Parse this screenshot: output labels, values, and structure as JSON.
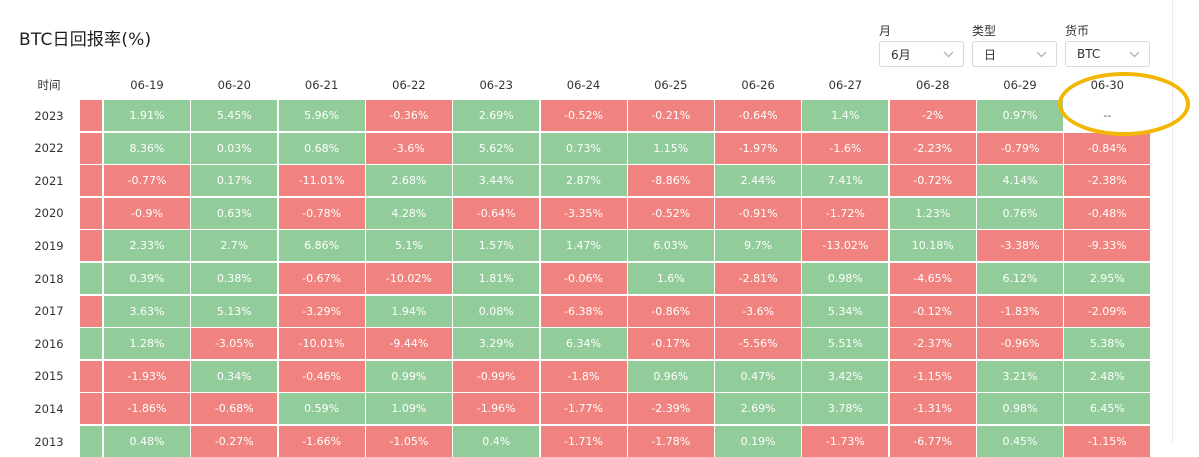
{
  "page": {
    "title": "BTC日回报率(%)"
  },
  "filters": [
    {
      "label": "月",
      "value": "6月"
    },
    {
      "label": "类型",
      "value": "日"
    },
    {
      "label": "货币",
      "value": "BTC"
    }
  ],
  "table": {
    "time_header": "时间",
    "columns": [
      "06-19",
      "06-20",
      "06-21",
      "06-22",
      "06-23",
      "06-24",
      "06-25",
      "06-26",
      "06-27",
      "06-28",
      "06-29",
      "06-30"
    ],
    "rows": [
      {
        "year": "2023",
        "stub": "neg",
        "cells": [
          {
            "text": "1.91%",
            "tone": "pos"
          },
          {
            "text": "5.45%",
            "tone": "pos"
          },
          {
            "text": "5.96%",
            "tone": "pos"
          },
          {
            "text": "-0.36%",
            "tone": "neg"
          },
          {
            "text": "2.69%",
            "tone": "pos"
          },
          {
            "text": "-0.52%",
            "tone": "neg"
          },
          {
            "text": "-0.21%",
            "tone": "neg"
          },
          {
            "text": "-0.64%",
            "tone": "neg"
          },
          {
            "text": "1.4%",
            "tone": "pos"
          },
          {
            "text": "-2%",
            "tone": "neg"
          },
          {
            "text": "0.97%",
            "tone": "pos"
          },
          {
            "text": "--",
            "tone": "empty"
          }
        ]
      },
      {
        "year": "2022",
        "stub": "neg",
        "cells": [
          {
            "text": "8.36%",
            "tone": "pos"
          },
          {
            "text": "0.03%",
            "tone": "pos"
          },
          {
            "text": "0.68%",
            "tone": "pos"
          },
          {
            "text": "-3.6%",
            "tone": "neg"
          },
          {
            "text": "5.62%",
            "tone": "pos"
          },
          {
            "text": "0.73%",
            "tone": "pos"
          },
          {
            "text": "1.15%",
            "tone": "pos"
          },
          {
            "text": "-1.97%",
            "tone": "neg"
          },
          {
            "text": "-1.6%",
            "tone": "neg"
          },
          {
            "text": "-2.23%",
            "tone": "neg"
          },
          {
            "text": "-0.79%",
            "tone": "neg"
          },
          {
            "text": "-0.84%",
            "tone": "neg"
          }
        ]
      },
      {
        "year": "2021",
        "stub": "neg",
        "cells": [
          {
            "text": "-0.77%",
            "tone": "neg"
          },
          {
            "text": "0.17%",
            "tone": "pos"
          },
          {
            "text": "-11.01%",
            "tone": "neg"
          },
          {
            "text": "2.68%",
            "tone": "pos"
          },
          {
            "text": "3.44%",
            "tone": "pos"
          },
          {
            "text": "2.87%",
            "tone": "pos"
          },
          {
            "text": "-8.86%",
            "tone": "neg"
          },
          {
            "text": "2.44%",
            "tone": "pos"
          },
          {
            "text": "7.41%",
            "tone": "pos"
          },
          {
            "text": "-0.72%",
            "tone": "neg"
          },
          {
            "text": "4.14%",
            "tone": "pos"
          },
          {
            "text": "-2.38%",
            "tone": "neg"
          }
        ]
      },
      {
        "year": "2020",
        "stub": "neg",
        "cells": [
          {
            "text": "-0.9%",
            "tone": "neg"
          },
          {
            "text": "0.63%",
            "tone": "pos"
          },
          {
            "text": "-0.78%",
            "tone": "neg"
          },
          {
            "text": "4.28%",
            "tone": "pos"
          },
          {
            "text": "-0.64%",
            "tone": "neg"
          },
          {
            "text": "-3.35%",
            "tone": "neg"
          },
          {
            "text": "-0.52%",
            "tone": "neg"
          },
          {
            "text": "-0.91%",
            "tone": "neg"
          },
          {
            "text": "-1.72%",
            "tone": "neg"
          },
          {
            "text": "1.23%",
            "tone": "pos"
          },
          {
            "text": "0.76%",
            "tone": "pos"
          },
          {
            "text": "-0.48%",
            "tone": "neg"
          }
        ]
      },
      {
        "year": "2019",
        "stub": "neg",
        "cells": [
          {
            "text": "2.33%",
            "tone": "pos"
          },
          {
            "text": "2.7%",
            "tone": "pos"
          },
          {
            "text": "6.86%",
            "tone": "pos"
          },
          {
            "text": "5.1%",
            "tone": "pos"
          },
          {
            "text": "1.57%",
            "tone": "pos"
          },
          {
            "text": "1.47%",
            "tone": "pos"
          },
          {
            "text": "6.03%",
            "tone": "pos"
          },
          {
            "text": "9.7%",
            "tone": "pos"
          },
          {
            "text": "-13.02%",
            "tone": "neg"
          },
          {
            "text": "10.18%",
            "tone": "pos"
          },
          {
            "text": "-3.38%",
            "tone": "neg"
          },
          {
            "text": "-9.33%",
            "tone": "neg"
          }
        ]
      },
      {
        "year": "2018",
        "stub": "pos",
        "cells": [
          {
            "text": "0.39%",
            "tone": "pos"
          },
          {
            "text": "0.38%",
            "tone": "pos"
          },
          {
            "text": "-0.67%",
            "tone": "neg"
          },
          {
            "text": "-10.02%",
            "tone": "neg"
          },
          {
            "text": "1.81%",
            "tone": "pos"
          },
          {
            "text": "-0.06%",
            "tone": "neg"
          },
          {
            "text": "1.6%",
            "tone": "pos"
          },
          {
            "text": "-2.81%",
            "tone": "neg"
          },
          {
            "text": "0.98%",
            "tone": "pos"
          },
          {
            "text": "-4.65%",
            "tone": "neg"
          },
          {
            "text": "6.12%",
            "tone": "pos"
          },
          {
            "text": "2.95%",
            "tone": "pos"
          }
        ]
      },
      {
        "year": "2017",
        "stub": "neg",
        "cells": [
          {
            "text": "3.63%",
            "tone": "pos"
          },
          {
            "text": "5.13%",
            "tone": "pos"
          },
          {
            "text": "-3.29%",
            "tone": "neg"
          },
          {
            "text": "1.94%",
            "tone": "pos"
          },
          {
            "text": "0.08%",
            "tone": "pos"
          },
          {
            "text": "-6.38%",
            "tone": "neg"
          },
          {
            "text": "-0.86%",
            "tone": "neg"
          },
          {
            "text": "-3.6%",
            "tone": "neg"
          },
          {
            "text": "5.34%",
            "tone": "pos"
          },
          {
            "text": "-0.12%",
            "tone": "neg"
          },
          {
            "text": "-1.83%",
            "tone": "neg"
          },
          {
            "text": "-2.09%",
            "tone": "neg"
          }
        ]
      },
      {
        "year": "2016",
        "stub": "pos",
        "cells": [
          {
            "text": "1.28%",
            "tone": "pos"
          },
          {
            "text": "-3.05%",
            "tone": "neg"
          },
          {
            "text": "-10.01%",
            "tone": "neg"
          },
          {
            "text": "-9.44%",
            "tone": "neg"
          },
          {
            "text": "3.29%",
            "tone": "pos"
          },
          {
            "text": "6.34%",
            "tone": "pos"
          },
          {
            "text": "-0.17%",
            "tone": "neg"
          },
          {
            "text": "-5.56%",
            "tone": "neg"
          },
          {
            "text": "5.51%",
            "tone": "pos"
          },
          {
            "text": "-2.37%",
            "tone": "neg"
          },
          {
            "text": "-0.96%",
            "tone": "neg"
          },
          {
            "text": "5.38%",
            "tone": "pos"
          }
        ]
      },
      {
        "year": "2015",
        "stub": "neg",
        "cells": [
          {
            "text": "-1.93%",
            "tone": "neg"
          },
          {
            "text": "0.34%",
            "tone": "pos"
          },
          {
            "text": "-0.46%",
            "tone": "neg"
          },
          {
            "text": "0.99%",
            "tone": "pos"
          },
          {
            "text": "-0.99%",
            "tone": "neg"
          },
          {
            "text": "-1.8%",
            "tone": "neg"
          },
          {
            "text": "0.96%",
            "tone": "pos"
          },
          {
            "text": "0.47%",
            "tone": "pos"
          },
          {
            "text": "3.42%",
            "tone": "pos"
          },
          {
            "text": "-1.15%",
            "tone": "neg"
          },
          {
            "text": "3.21%",
            "tone": "pos"
          },
          {
            "text": "2.48%",
            "tone": "pos"
          }
        ]
      },
      {
        "year": "2014",
        "stub": "neg",
        "cells": [
          {
            "text": "-1.86%",
            "tone": "neg"
          },
          {
            "text": "-0.68%",
            "tone": "neg"
          },
          {
            "text": "0.59%",
            "tone": "pos"
          },
          {
            "text": "1.09%",
            "tone": "pos"
          },
          {
            "text": "-1.96%",
            "tone": "neg"
          },
          {
            "text": "-1.77%",
            "tone": "neg"
          },
          {
            "text": "-2.39%",
            "tone": "neg"
          },
          {
            "text": "2.69%",
            "tone": "pos"
          },
          {
            "text": "3.78%",
            "tone": "pos"
          },
          {
            "text": "-1.31%",
            "tone": "neg"
          },
          {
            "text": "0.98%",
            "tone": "pos"
          },
          {
            "text": "6.45%",
            "tone": "pos"
          }
        ]
      },
      {
        "year": "2013",
        "stub": "pos",
        "cells": [
          {
            "text": "0.48%",
            "tone": "pos"
          },
          {
            "text": "-0.27%",
            "tone": "neg"
          },
          {
            "text": "-1.66%",
            "tone": "neg"
          },
          {
            "text": "-1.05%",
            "tone": "neg"
          },
          {
            "text": "0.4%",
            "tone": "pos"
          },
          {
            "text": "-1.71%",
            "tone": "neg"
          },
          {
            "text": "-1.78%",
            "tone": "neg"
          },
          {
            "text": "0.19%",
            "tone": "pos"
          },
          {
            "text": "-1.73%",
            "tone": "neg"
          },
          {
            "text": "-6.77%",
            "tone": "neg"
          },
          {
            "text": "0.45%",
            "tone": "pos"
          },
          {
            "text": "-1.15%",
            "tone": "neg"
          }
        ]
      }
    ]
  },
  "colors": {
    "positive": "#92cc9a",
    "negative": "#f0837f",
    "highlight": "#f2b705"
  }
}
